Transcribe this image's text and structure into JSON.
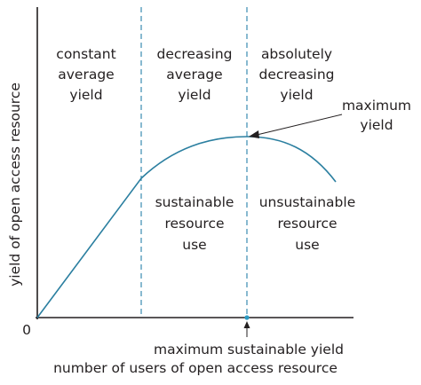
{
  "diagram": {
    "y_axis_label": "yield of open access resource",
    "x_axis_label": "number of users of open access resource",
    "origin_label": "0",
    "colors": {
      "curve": "#2b7fa0",
      "dashed": "#3a8bb0",
      "axis": "#231f20",
      "text": "#231f20",
      "marker": "#2b9bc4"
    },
    "regions": {
      "constant": [
        "constant",
        "average",
        "yield"
      ],
      "decreasing": [
        "decreasing",
        "average",
        "yield"
      ],
      "absolutely": [
        "absolutely",
        "decreasing",
        "yield"
      ]
    },
    "use_labels": {
      "sustainable": [
        "sustainable",
        "resource",
        "use"
      ],
      "unsustainable": [
        "unsustainable",
        "resource",
        "use"
      ]
    },
    "maximum_yield": [
      "maximum",
      "yield"
    ],
    "max_sustainable_yield": "maximum sustainable yield"
  }
}
